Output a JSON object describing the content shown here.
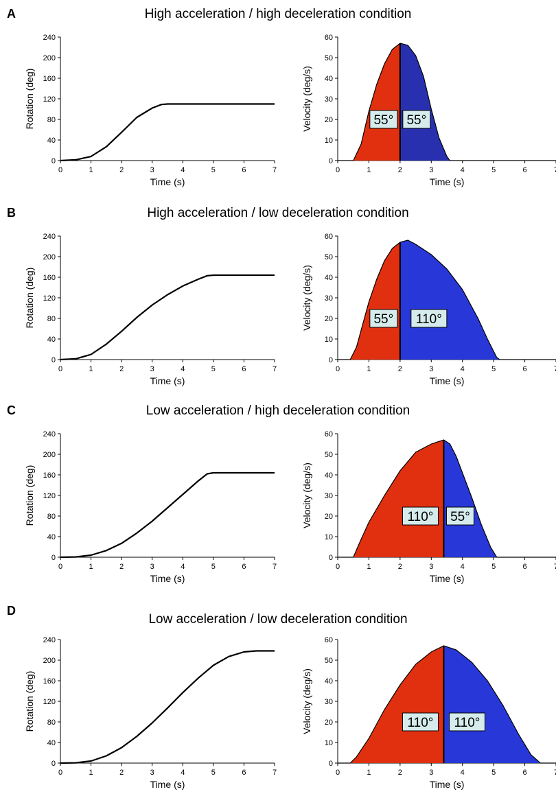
{
  "panels": [
    {
      "letter": "A",
      "title": "High acceleration / high deceleration condition",
      "rotation_chart": {
        "type": "line",
        "xlabel": "Time (s)",
        "ylabel": "Rotation (deg)",
        "xlim": [
          0,
          7
        ],
        "ylim": [
          0,
          240
        ],
        "xticks": [
          "0",
          "1",
          "2",
          "3",
          "4",
          "5",
          "6",
          "7"
        ],
        "yticks": [
          "0",
          "40",
          "80",
          "120",
          "160",
          "200",
          "240"
        ],
        "x": [
          0,
          0.5,
          1,
          1.5,
          2,
          2.5,
          3,
          3.3,
          3.5,
          4,
          5,
          6,
          7
        ],
        "y": [
          0,
          1.5,
          8,
          27,
          55,
          84,
          102,
          109,
          110,
          110,
          110,
          110,
          110
        ]
      },
      "velocity_chart": {
        "type": "area",
        "xlabel": "Time (s)",
        "ylabel": "Velocity (deg/s)",
        "xlim": [
          0,
          7
        ],
        "ylim": [
          0,
          60
        ],
        "xticks": [
          "0",
          "1",
          "2",
          "3",
          "4",
          "5",
          "6",
          "7"
        ],
        "yticks": [
          "0",
          "10",
          "20",
          "30",
          "40",
          "50",
          "60"
        ],
        "split_x": 2.0,
        "x": [
          0,
          0.5,
          0.75,
          1.0,
          1.25,
          1.5,
          1.75,
          2.0,
          2.25,
          2.5,
          2.75,
          3.0,
          3.25,
          3.5,
          3.6,
          4,
          5,
          6,
          7
        ],
        "y": [
          0,
          0,
          8,
          24,
          37,
          47,
          54,
          57,
          56,
          51,
          41,
          25,
          11,
          2,
          0,
          0,
          0,
          0,
          0
        ],
        "left_label": "55°",
        "right_label": "55°",
        "left_color": "#e03010",
        "right_color": "#2830b0"
      }
    },
    {
      "letter": "B",
      "title": "High acceleration / low deceleration condition",
      "rotation_chart": {
        "type": "line",
        "xlabel": "Time (s)",
        "ylabel": "Rotation (deg)",
        "xlim": [
          0,
          7
        ],
        "ylim": [
          0,
          240
        ],
        "xticks": [
          "0",
          "1",
          "2",
          "3",
          "4",
          "5",
          "6",
          "7"
        ],
        "yticks": [
          "0",
          "40",
          "80",
          "120",
          "160",
          "200",
          "240"
        ],
        "x": [
          0,
          0.5,
          1,
          1.5,
          2,
          2.5,
          3,
          3.5,
          4,
          4.5,
          4.8,
          5,
          6,
          7
        ],
        "y": [
          0,
          1.5,
          10,
          30,
          55,
          82,
          106,
          126,
          143,
          156,
          163,
          164,
          164,
          164
        ]
      },
      "velocity_chart": {
        "type": "area",
        "xlabel": "Time (s)",
        "ylabel": "Velocity (deg/s)",
        "xlim": [
          0,
          7
        ],
        "ylim": [
          0,
          60
        ],
        "xticks": [
          "0",
          "1",
          "2",
          "3",
          "4",
          "5",
          "6",
          "7"
        ],
        "yticks": [
          "0",
          "10",
          "20",
          "30",
          "40",
          "50",
          "60"
        ],
        "split_x": 2.0,
        "x": [
          0,
          0.4,
          0.6,
          0.8,
          1.0,
          1.25,
          1.5,
          1.75,
          2.0,
          2.25,
          2.5,
          3.0,
          3.5,
          4.0,
          4.5,
          4.8,
          5.1,
          5.2,
          6,
          7
        ],
        "y": [
          0,
          0,
          6,
          17,
          28,
          39,
          48,
          54,
          57,
          58,
          56,
          51,
          44,
          34,
          20,
          10,
          1,
          0,
          0,
          0
        ],
        "left_label": "55°",
        "right_label": "110°",
        "left_color": "#e03010",
        "right_color": "#2838d8"
      }
    },
    {
      "letter": "C",
      "title": "Low acceleration / high deceleration condition",
      "rotation_chart": {
        "type": "line",
        "xlabel": "Time (s)",
        "ylabel": "Rotation (deg)",
        "xlim": [
          0,
          7
        ],
        "ylim": [
          0,
          240
        ],
        "xticks": [
          "0",
          "1",
          "2",
          "3",
          "4",
          "5",
          "6",
          "7"
        ],
        "yticks": [
          "0",
          "40",
          "80",
          "120",
          "160",
          "200",
          "240"
        ],
        "x": [
          0,
          0.5,
          1,
          1.5,
          2,
          2.5,
          3,
          3.5,
          4,
          4.5,
          4.8,
          5,
          6,
          7
        ],
        "y": [
          0,
          0.5,
          4,
          13,
          27,
          47,
          70,
          96,
          122,
          148,
          162,
          164,
          164,
          164
        ]
      },
      "velocity_chart": {
        "type": "area",
        "xlabel": "Time (s)",
        "ylabel": "Velocity (deg/s)",
        "xlim": [
          0,
          7
        ],
        "ylim": [
          0,
          60
        ],
        "xticks": [
          "0",
          "1",
          "2",
          "3",
          "4",
          "5",
          "6",
          "7"
        ],
        "yticks": [
          "0",
          "10",
          "20",
          "30",
          "40",
          "50",
          "60"
        ],
        "split_x": 3.4,
        "x": [
          0,
          0.5,
          0.7,
          1.0,
          1.5,
          2.0,
          2.5,
          3.0,
          3.4,
          3.6,
          3.8,
          4.0,
          4.3,
          4.6,
          4.9,
          5.1,
          6,
          7
        ],
        "y": [
          0,
          0,
          7,
          17,
          30,
          42,
          51,
          55,
          57,
          55,
          49,
          41,
          29,
          16,
          5,
          0,
          0,
          0
        ],
        "left_label": "110°",
        "right_label": "55°",
        "left_color": "#e03010",
        "right_color": "#2838d8"
      }
    },
    {
      "letter": "D",
      "title": "Low acceleration / low deceleration condition",
      "rotation_chart": {
        "type": "line",
        "xlabel": "Time (s)",
        "ylabel": "Rotation (deg)",
        "xlim": [
          0,
          7
        ],
        "ylim": [
          0,
          240
        ],
        "xticks": [
          "0",
          "1",
          "2",
          "3",
          "4",
          "5",
          "6",
          "7"
        ],
        "yticks": [
          "0",
          "40",
          "80",
          "120",
          "160",
          "200",
          "240"
        ],
        "x": [
          0,
          0.5,
          1,
          1.5,
          2,
          2.5,
          3,
          3.5,
          4,
          4.5,
          5,
          5.5,
          6,
          6.4,
          7
        ],
        "y": [
          0,
          0.5,
          4,
          14,
          30,
          52,
          78,
          107,
          137,
          165,
          190,
          207,
          216,
          218,
          218
        ]
      },
      "velocity_chart": {
        "type": "area",
        "xlabel": "Time (s)",
        "ylabel": "Velocity (deg/s)",
        "xlim": [
          0,
          7
        ],
        "ylim": [
          0,
          60
        ],
        "xticks": [
          "0",
          "1",
          "2",
          "3",
          "4",
          "5",
          "6",
          "7"
        ],
        "yticks": [
          "0",
          "10",
          "20",
          "30",
          "40",
          "50",
          "60"
        ],
        "split_x": 3.4,
        "x": [
          0,
          0.4,
          0.6,
          1.0,
          1.5,
          2.0,
          2.5,
          3.0,
          3.4,
          3.8,
          4.3,
          4.8,
          5.3,
          5.8,
          6.2,
          6.5,
          7
        ],
        "y": [
          0,
          0,
          3,
          12,
          26,
          38,
          48,
          54,
          57,
          55,
          49,
          40,
          28,
          14,
          4,
          0,
          0
        ],
        "left_label": "110°",
        "right_label": "110°",
        "left_color": "#e03010",
        "right_color": "#2838d8"
      }
    }
  ]
}
